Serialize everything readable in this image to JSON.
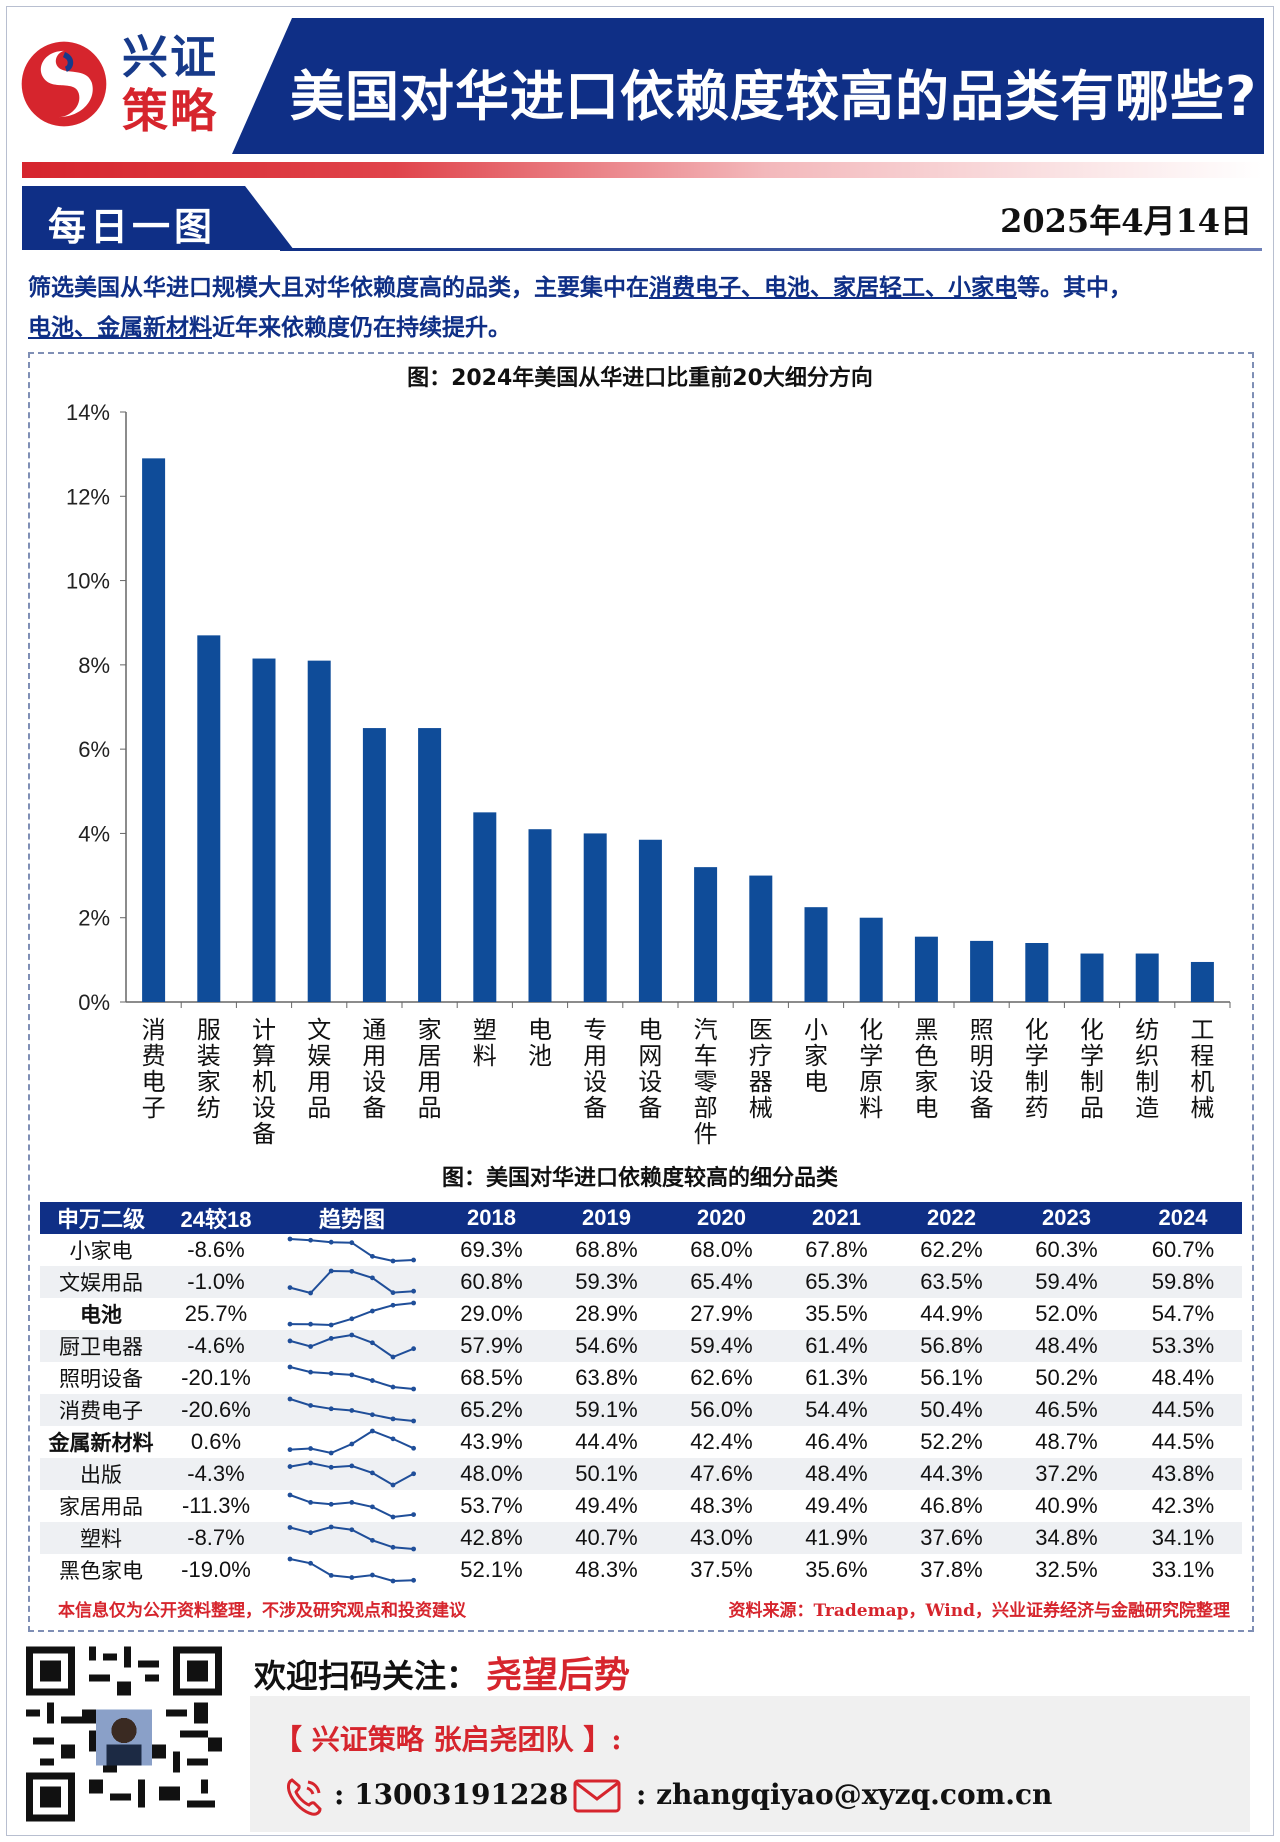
{
  "header": {
    "logo_line1": "兴证",
    "logo_line2": "策略",
    "title": "美国对华进口依赖度较高的品类有哪些?",
    "section": "每日一图",
    "date": "2025年4月14日"
  },
  "lead": {
    "part1": "筛选美国从华进口规模大且对华依赖度高的品类，主要集中在",
    "ul1": "消费电子、电池、家居轻工、小家电",
    "part2": "等。其中，",
    "ul2": "电池、金属新材料",
    "part3": "近年来依赖度仍在持续提升。"
  },
  "chart_data": {
    "type": "bar",
    "title": "图：2024年美国从华进口比重前20大细分方向",
    "categories": [
      "消费电子",
      "服装家纺",
      "计算机设备",
      "文娱用品",
      "通用设备",
      "家居用品",
      "塑料",
      "电池",
      "专用设备",
      "电网设备",
      "汽车零部件",
      "医疗器械",
      "小家电",
      "化学原料",
      "黑色家电",
      "照明设备",
      "化学制药",
      "化学制品",
      "纺织制造",
      "工程机械"
    ],
    "values": [
      12.9,
      8.7,
      8.15,
      8.1,
      6.5,
      6.5,
      4.5,
      4.1,
      4.0,
      3.85,
      3.2,
      3.0,
      2.25,
      2.0,
      1.55,
      1.45,
      1.4,
      1.15,
      1.15,
      0.95
    ],
    "ylim": [
      0,
      14
    ],
    "yticks": [
      "0%",
      "2%",
      "4%",
      "6%",
      "8%",
      "10%",
      "12%",
      "14%"
    ],
    "xlabel": "",
    "ylabel": ""
  },
  "table": {
    "title": "图：美国对华进口依赖度较高的细分品类",
    "headers": [
      "申万二级",
      "24较18",
      "趋势图",
      "2018",
      "2019",
      "2020",
      "2021",
      "2022",
      "2023",
      "2024"
    ],
    "rows": [
      {
        "name": "小家电",
        "change": "-8.6%",
        "bold": false,
        "vals": [
          "69.3%",
          "68.8%",
          "68.0%",
          "67.8%",
          "62.2%",
          "60.3%",
          "60.7%"
        ],
        "nums": [
          69.3,
          68.8,
          68.0,
          67.8,
          62.2,
          60.3,
          60.7
        ]
      },
      {
        "name": "文娱用品",
        "change": "-1.0%",
        "bold": false,
        "vals": [
          "60.8%",
          "59.3%",
          "65.4%",
          "65.3%",
          "63.5%",
          "59.4%",
          "59.8%"
        ],
        "nums": [
          60.8,
          59.3,
          65.4,
          65.3,
          63.5,
          59.4,
          59.8
        ]
      },
      {
        "name": "电池",
        "change": "25.7%",
        "bold": true,
        "vals": [
          "29.0%",
          "28.9%",
          "27.9%",
          "35.5%",
          "44.9%",
          "52.0%",
          "54.7%"
        ],
        "nums": [
          29.0,
          28.9,
          27.9,
          35.5,
          44.9,
          52.0,
          54.7
        ]
      },
      {
        "name": "厨卫电器",
        "change": "-4.6%",
        "bold": false,
        "vals": [
          "57.9%",
          "54.6%",
          "59.4%",
          "61.4%",
          "56.8%",
          "48.4%",
          "53.3%"
        ],
        "nums": [
          57.9,
          54.6,
          59.4,
          61.4,
          56.8,
          48.4,
          53.3
        ]
      },
      {
        "name": "照明设备",
        "change": "-20.1%",
        "bold": false,
        "vals": [
          "68.5%",
          "63.8%",
          "62.6%",
          "61.3%",
          "56.1%",
          "50.2%",
          "48.4%"
        ],
        "nums": [
          68.5,
          63.8,
          62.6,
          61.3,
          56.1,
          50.2,
          48.4
        ]
      },
      {
        "name": "消费电子",
        "change": "-20.6%",
        "bold": false,
        "vals": [
          "65.2%",
          "59.1%",
          "56.0%",
          "54.4%",
          "50.4%",
          "46.5%",
          "44.5%"
        ],
        "nums": [
          65.2,
          59.1,
          56.0,
          54.4,
          50.4,
          46.5,
          44.5
        ]
      },
      {
        "name": "金属新材料",
        "change": "0.6%",
        "bold": true,
        "vals": [
          "43.9%",
          "44.4%",
          "42.4%",
          "46.4%",
          "52.2%",
          "48.7%",
          "44.5%"
        ],
        "nums": [
          43.9,
          44.4,
          42.4,
          46.4,
          52.2,
          48.7,
          44.5
        ]
      },
      {
        "name": "出版",
        "change": "-4.3%",
        "bold": false,
        "vals": [
          "48.0%",
          "50.1%",
          "47.6%",
          "48.4%",
          "44.3%",
          "37.2%",
          "43.8%"
        ],
        "nums": [
          48.0,
          50.1,
          47.6,
          48.4,
          44.3,
          37.2,
          43.8
        ]
      },
      {
        "name": "家居用品",
        "change": "-11.3%",
        "bold": false,
        "vals": [
          "53.7%",
          "49.4%",
          "48.3%",
          "49.4%",
          "46.8%",
          "40.9%",
          "42.3%"
        ],
        "nums": [
          53.7,
          49.4,
          48.3,
          49.4,
          46.8,
          40.9,
          42.3
        ]
      },
      {
        "name": "塑料",
        "change": "-8.7%",
        "bold": false,
        "vals": [
          "42.8%",
          "40.7%",
          "43.0%",
          "41.9%",
          "37.6%",
          "34.8%",
          "34.1%"
        ],
        "nums": [
          42.8,
          40.7,
          43.0,
          41.9,
          37.6,
          34.8,
          34.1
        ]
      },
      {
        "name": "黑色家电",
        "change": "-19.0%",
        "bold": false,
        "vals": [
          "52.1%",
          "48.3%",
          "37.5%",
          "35.6%",
          "37.8%",
          "32.5%",
          "33.1%"
        ],
        "nums": [
          52.1,
          48.3,
          37.5,
          35.6,
          37.8,
          32.5,
          33.1
        ]
      }
    ]
  },
  "footer": {
    "disclaimer": "本信息仅为公开资料整理，不涉及研究观点和投资建议",
    "source": "资料来源：Trademap，Wind，兴业证券经济与金融研究院整理",
    "welcome": "欢迎扫码关注：",
    "brand": "尧望后势",
    "team": "【 兴证策略 张启尧团队 】:",
    "phone": ": 13003191228",
    "email": ": zhangqiyao@xyzq.com.cn"
  },
  "colors": {
    "navy": "#0f2f86",
    "red": "#d6252d",
    "bar": "#0f4c99"
  },
  "icons": {
    "phone": "phone-icon",
    "mail": "mail-icon",
    "qr": "qr-code-icon",
    "logo": "logo-swirl-icon"
  }
}
